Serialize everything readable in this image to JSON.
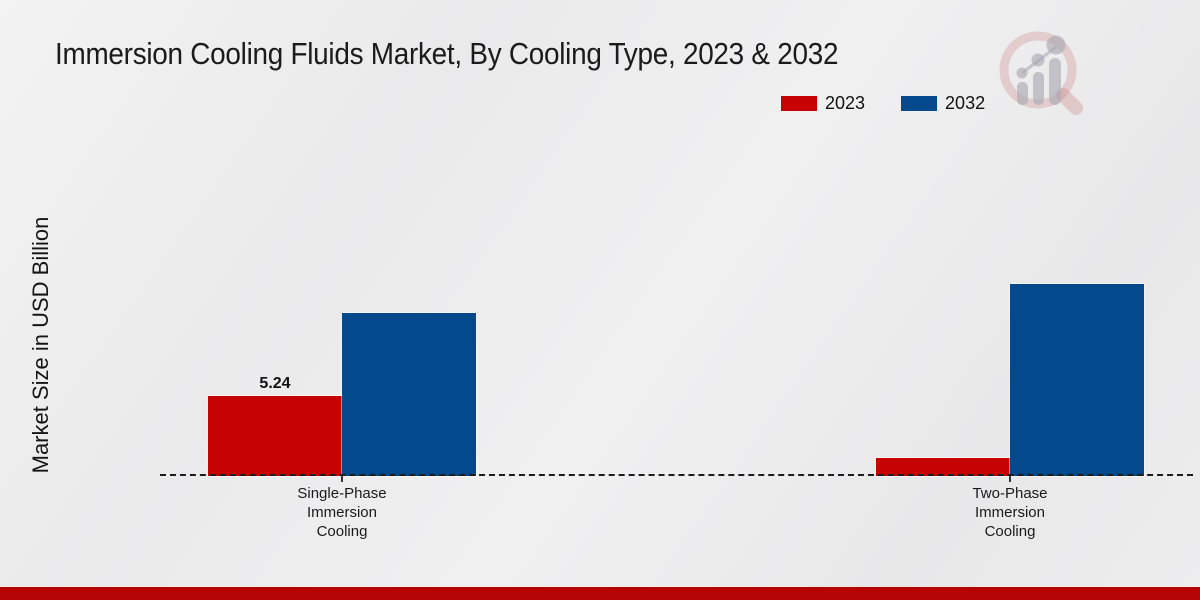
{
  "title": "Immersion Cooling Fluids Market, By Cooling Type, 2023 & 2032",
  "ylabel": "Market Size in USD Billion",
  "legend": {
    "position": "top-right",
    "items": [
      {
        "label": "2023",
        "color": "#C60202"
      },
      {
        "label": "2032",
        "color": "#04498C"
      }
    ]
  },
  "watermark_icon": "magnifier-bar-chart-logo",
  "footer": {
    "bar_color": "#B50404"
  },
  "colors": {
    "accent_red": "#C60202",
    "accent_blue": "#04498C",
    "background": "#ECECEC"
  },
  "chart_data": {
    "type": "bar",
    "title": "Immersion Cooling Fluids Market, By Cooling Type, 2023 & 2032",
    "xlabel": "",
    "ylabel": "Market Size in USD Billion",
    "categories": [
      "Single-Phase Immersion Cooling",
      "Two-Phase Immersion Cooling"
    ],
    "series": [
      {
        "name": "2023",
        "color": "#C60202",
        "values": [
          5.24,
          1.2
        ]
      },
      {
        "name": "2032",
        "color": "#04498C",
        "values": [
          10.7,
          12.6
        ]
      }
    ],
    "value_labels": [
      {
        "series": "2023",
        "category_index": 0,
        "text": "5.24"
      }
    ],
    "ylim": [
      0,
      13.5
    ],
    "grid": false,
    "y_axis_ticks_visible": false,
    "baseline_style": "dashed",
    "legend_position": "top-right"
  }
}
